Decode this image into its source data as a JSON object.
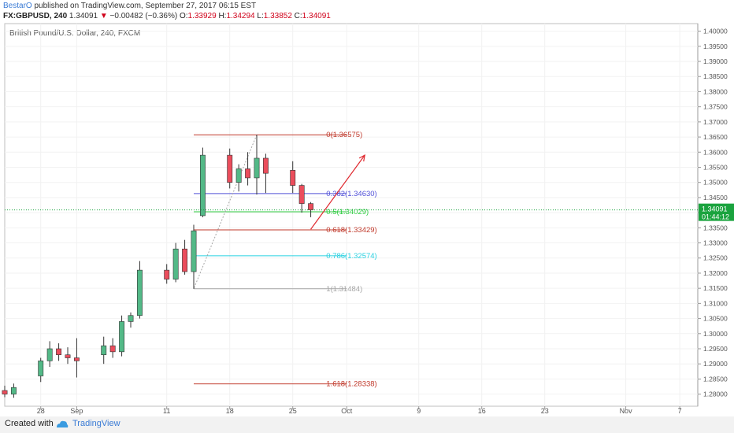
{
  "header": {
    "author": "BestarO",
    "published": " published on TradingView.com, September 27, 2017 06:15 EST",
    "symbol": "FX:GBPUSD, 240",
    "last": "1.34091",
    "change": "−0.00482 (−0.36%)",
    "open_label": "O:",
    "open": "1.33929",
    "high_label": "H:",
    "high": "1.34294",
    "low_label": "L:",
    "low": "1.33852",
    "close_label": "C:",
    "close": "1.34091"
  },
  "footer": {
    "created": "Created with",
    "brand": "TradingView"
  },
  "chart_data": {
    "type": "candlestick",
    "title": "British Pound/U.S. Dollar, 240, FXCM",
    "ylim": [
      1.276,
      1.4025
    ],
    "xlim": [
      "2017-08-24",
      "2017-11-09"
    ],
    "y_ticks": [
      "1.40000",
      "1.39500",
      "1.39000",
      "1.38500",
      "1.38000",
      "1.37500",
      "1.37000",
      "1.36500",
      "1.36000",
      "1.35500",
      "1.35000",
      "1.34500",
      "1.34000",
      "1.33500",
      "1.33000",
      "1.32500",
      "1.32000",
      "1.31500",
      "1.31000",
      "1.30500",
      "1.30000",
      "1.29500",
      "1.29000",
      "1.28500",
      "1.28000"
    ],
    "x_ticks": [
      {
        "label": "28",
        "date": "2017-08-28"
      },
      {
        "label": "Sep",
        "date": "2017-09-01"
      },
      {
        "label": "11",
        "date": "2017-09-11"
      },
      {
        "label": "18",
        "date": "2017-09-18"
      },
      {
        "label": "25",
        "date": "2017-09-25"
      },
      {
        "label": "Oct",
        "date": "2017-10-01"
      },
      {
        "label": "9",
        "date": "2017-10-09"
      },
      {
        "label": "16",
        "date": "2017-10-16"
      },
      {
        "label": "23",
        "date": "2017-10-23"
      },
      {
        "label": "Nov",
        "date": "2017-11-01"
      },
      {
        "label": "7",
        "date": "2017-11-07"
      }
    ],
    "colors": {
      "up": "#53b987",
      "down": "#eb4d5c"
    },
    "price_badge": {
      "value": "1.34091",
      "countdown": "01:44:12",
      "color": "#1aa33e"
    },
    "fibonacci": {
      "start_date": "2017-09-14",
      "end_date": "2017-10-01",
      "levels": [
        {
          "label": "0(1.36575)",
          "price": 1.36575,
          "color": "#c0392b"
        },
        {
          "label": "0.382(1.34630)",
          "price": 1.3463,
          "color": "#5050d8"
        },
        {
          "label": "0.5(1.34029)",
          "price": 1.34029,
          "color": "#2ecc40"
        },
        {
          "label": "0.618(1.33429)",
          "price": 1.33429,
          "color": "#c0392b"
        },
        {
          "label": "0.786(1.32574)",
          "price": 1.32574,
          "color": "#27d0e0"
        },
        {
          "label": "1(1.31484)",
          "price": 1.31484,
          "color": "#a6a6a6"
        },
        {
          "label": "1.618(1.28338)",
          "price": 1.28338,
          "color": "#c0392b"
        }
      ],
      "top_anchor": {
        "date": "2017-09-21",
        "price": 1.36575
      },
      "bottom_anchor": {
        "date": "2017-09-14",
        "price": 1.31484
      }
    },
    "arrow": {
      "from": {
        "date": "2017-09-27",
        "price": 1.3345
      },
      "to": {
        "date": "2017-10-03",
        "price": 1.359
      },
      "color": "#e0282e"
    },
    "candles": [
      {
        "d": "2017-08-24",
        "o": 1.2812,
        "h": 1.2828,
        "l": 1.279,
        "c": 1.28
      },
      {
        "d": "2017-08-25",
        "o": 1.28,
        "h": 1.2835,
        "l": 1.2788,
        "c": 1.2822
      },
      {
        "d": "2017-08-28",
        "o": 1.286,
        "h": 1.292,
        "l": 1.284,
        "c": 1.291
      },
      {
        "d": "2017-08-29",
        "o": 1.291,
        "h": 1.2975,
        "l": 1.289,
        "c": 1.295
      },
      {
        "d": "2017-08-30",
        "o": 1.295,
        "h": 1.2968,
        "l": 1.291,
        "c": 1.293
      },
      {
        "d": "2017-08-31",
        "o": 1.293,
        "h": 1.2955,
        "l": 1.29,
        "c": 1.292
      },
      {
        "d": "2017-09-01",
        "o": 1.292,
        "h": 1.2985,
        "l": 1.2855,
        "c": 1.291
      },
      {
        "d": "2017-09-04",
        "o": 1.293,
        "h": 1.299,
        "l": 1.29,
        "c": 1.296
      },
      {
        "d": "2017-09-05",
        "o": 1.296,
        "h": 1.2985,
        "l": 1.292,
        "c": 1.294
      },
      {
        "d": "2017-09-06",
        "o": 1.294,
        "h": 1.306,
        "l": 1.2925,
        "c": 1.304
      },
      {
        "d": "2017-09-07",
        "o": 1.304,
        "h": 1.307,
        "l": 1.302,
        "c": 1.306
      },
      {
        "d": "2017-09-08",
        "o": 1.306,
        "h": 1.324,
        "l": 1.305,
        "c": 1.321
      },
      {
        "d": "2017-09-11",
        "o": 1.321,
        "h": 1.323,
        "l": 1.3165,
        "c": 1.318
      },
      {
        "d": "2017-09-12",
        "o": 1.318,
        "h": 1.33,
        "l": 1.317,
        "c": 1.328
      },
      {
        "d": "2017-09-13",
        "o": 1.328,
        "h": 1.331,
        "l": 1.3195,
        "c": 1.3205
      },
      {
        "d": "2017-09-14",
        "o": 1.3205,
        "h": 1.336,
        "l": 1.3148,
        "c": 1.334
      },
      {
        "d": "2017-09-15",
        "o": 1.339,
        "h": 1.3615,
        "l": 1.3385,
        "c": 1.359
      },
      {
        "d": "2017-09-18",
        "o": 1.359,
        "h": 1.3612,
        "l": 1.348,
        "c": 1.35
      },
      {
        "d": "2017-09-19",
        "o": 1.35,
        "h": 1.356,
        "l": 1.347,
        "c": 1.3545
      },
      {
        "d": "2017-09-20",
        "o": 1.3545,
        "h": 1.36,
        "l": 1.349,
        "c": 1.3515
      },
      {
        "d": "2017-09-21",
        "o": 1.3515,
        "h": 1.36575,
        "l": 1.346,
        "c": 1.358
      },
      {
        "d": "2017-09-22",
        "o": 1.358,
        "h": 1.3595,
        "l": 1.3465,
        "c": 1.353
      },
      {
        "d": "2017-09-25",
        "o": 1.354,
        "h": 1.357,
        "l": 1.3465,
        "c": 1.349
      },
      {
        "d": "2017-09-26",
        "o": 1.349,
        "h": 1.3495,
        "l": 1.34,
        "c": 1.343
      },
      {
        "d": "2017-09-27",
        "o": 1.343,
        "h": 1.3435,
        "l": 1.3385,
        "c": 1.3409
      }
    ]
  }
}
